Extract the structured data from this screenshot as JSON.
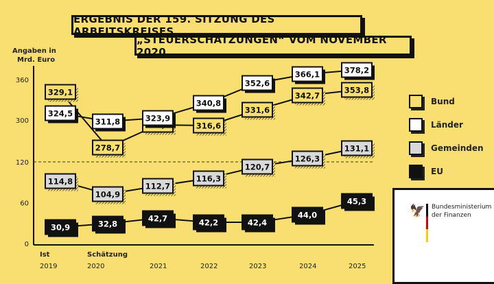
{
  "title_line1": "ERGEBNIS DER 159. SITZUNG DES ARBEITSKREISES",
  "title_line2": "„STEUERSCHÄTZUNGEN“ VOM NOVEMBER 2020",
  "logo_text": [
    "Bundesministerium",
    "der Finanzen"
  ],
  "chart_data": {
    "type": "line",
    "title": "ERGEBNIS DER 159. SITZUNG DES ARBEITSKREISES „STEUERSCHÄTZUNGEN“ VOM NOVEMBER 2020",
    "ylabel": "Angaben in Mrd. Euro",
    "yticks": [
      "0",
      "60",
      "120",
      "300",
      "360"
    ],
    "axis_break": "between 120 and 300",
    "x": [
      "2019",
      "2020",
      "2021",
      "2022",
      "2023",
      "2024",
      "2025"
    ],
    "x_prefix": {
      "2019": "Ist",
      "2020": "Schätzung"
    },
    "series": [
      {
        "name": "Bund",
        "color": "#f9df72",
        "text": "#111",
        "values": [
          329.1,
          278.7,
          296.9,
          316.6,
          331.6,
          342.7,
          353.8
        ],
        "labels": [
          "329,1",
          "278,7",
          "296,9",
          "316,6",
          "331,6",
          "342,7",
          "353,8"
        ]
      },
      {
        "name": "Länder",
        "color": "#ffffff",
        "text": "#111",
        "values": [
          324.5,
          311.8,
          323.9,
          340.8,
          352.6,
          366.1,
          378.2
        ],
        "labels": [
          "324,5",
          "311,8",
          "323,9",
          "340,8",
          "352,6",
          "366,1",
          "378,2"
        ]
      },
      {
        "name": "Gemeinden",
        "color": "#d9d9d9",
        "text": "#111",
        "values": [
          114.8,
          104.9,
          112.7,
          116.3,
          120.7,
          126.3,
          131.1
        ],
        "labels": [
          "114,8",
          "104,9",
          "112,7",
          "116,3",
          "120,7",
          "126,3",
          "131,1"
        ]
      },
      {
        "name": "EU",
        "color": "#111111",
        "text": "#ffffff",
        "values": [
          30.9,
          32.8,
          42.7,
          42.2,
          42.4,
          44.0,
          45.3
        ],
        "labels": [
          "30,9",
          "32,8",
          "42,7",
          "42,2",
          "42,4",
          "44,0",
          "45,3"
        ]
      }
    ],
    "legend": "right"
  }
}
